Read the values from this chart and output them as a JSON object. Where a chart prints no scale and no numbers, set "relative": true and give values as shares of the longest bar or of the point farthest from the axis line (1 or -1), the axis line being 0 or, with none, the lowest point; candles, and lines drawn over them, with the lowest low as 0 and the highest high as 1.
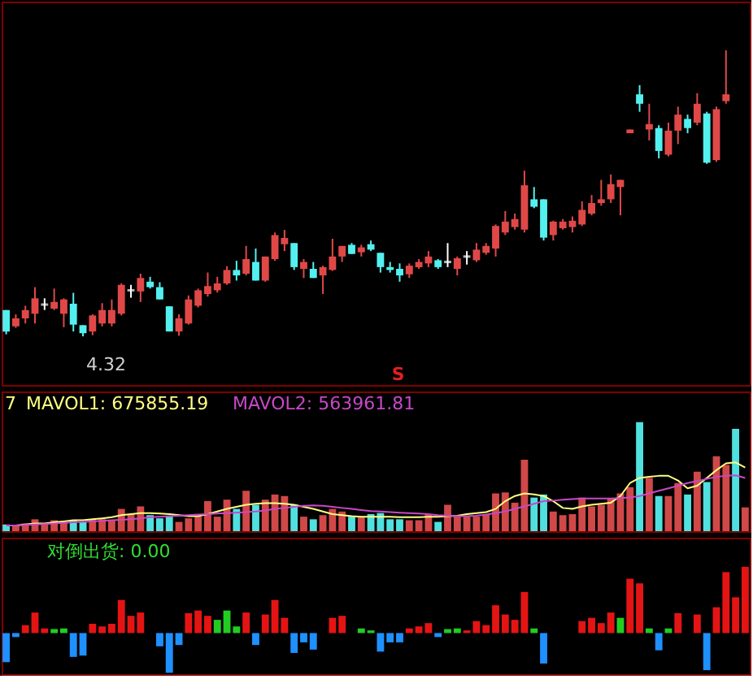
{
  "chart_data": [
    {
      "type": "candlestick",
      "relative": true,
      "categories": [
        null,
        null,
        null,
        null,
        null,
        null,
        null,
        null,
        null,
        null,
        null,
        null,
        null,
        null,
        null,
        null,
        null,
        null,
        null,
        null,
        null,
        null,
        null,
        null,
        null,
        null,
        null,
        null,
        null,
        null,
        null,
        null,
        null,
        null,
        null,
        null,
        null,
        null,
        null,
        null,
        null,
        null,
        null,
        null,
        null,
        null,
        null,
        null,
        null,
        null,
        null,
        null,
        null,
        null,
        null,
        null,
        null,
        null,
        null,
        null,
        null,
        null,
        null,
        null,
        null,
        null,
        null,
        null,
        null,
        null,
        null,
        null,
        null,
        null,
        null,
        null,
        null,
        null
      ],
      "ohlc": [
        [
          0.092,
          0.092,
          0.007,
          0.017
        ],
        [
          0.035,
          0.077,
          0.03,
          0.063
        ],
        [
          0.063,
          0.107,
          0.045,
          0.092
        ],
        [
          0.079,
          0.172,
          0.045,
          0.133
        ],
        [
          0.111,
          0.133,
          0.092,
          0.111
        ],
        [
          0.097,
          0.167,
          0.092,
          0.12
        ],
        [
          0.079,
          0.133,
          0.032,
          0.129
        ],
        [
          0.114,
          0.152,
          0.017,
          0.041
        ],
        [
          0.039,
          0.039,
          0,
          0.011
        ],
        [
          0.017,
          0.077,
          0.004,
          0.073
        ],
        [
          0.045,
          0.116,
          0.035,
          0.092
        ],
        [
          0.045,
          0.129,
          0.035,
          0.092
        ],
        [
          0.079,
          0.185,
          0.073,
          0.18
        ],
        [
          0.161,
          0.18,
          0.135,
          0.161
        ],
        [
          0.157,
          0.219,
          0.12,
          0.204
        ],
        [
          0.191,
          0.208,
          0.167,
          0.172
        ],
        [
          0.172,
          0.189,
          0.129,
          0.129
        ],
        [
          0.105,
          0.105,
          0.017,
          0.017
        ],
        [
          0.017,
          0.077,
          0.002,
          0.063
        ],
        [
          0.045,
          0.143,
          0.041,
          0.129
        ],
        [
          0.107,
          0.167,
          0.101,
          0.161
        ],
        [
          0.148,
          0.223,
          0.139,
          0.176
        ],
        [
          0.161,
          0.208,
          0.153,
          0.185
        ],
        [
          0.185,
          0.245,
          0.18,
          0.232
        ],
        [
          0.232,
          0.264,
          0.195,
          0.213
        ],
        [
          0.219,
          0.316,
          0.213,
          0.27
        ],
        [
          0.26,
          0.307,
          0.195,
          0.195
        ],
        [
          0.195,
          0.279,
          0.191,
          0.279
        ],
        [
          0.27,
          0.363,
          0.264,
          0.354
        ],
        [
          0.322,
          0.372,
          0.298,
          0.344
        ],
        [
          0.326,
          0.326,
          0.232,
          0.242
        ],
        [
          0.236,
          0.27,
          0.204,
          0.26
        ],
        [
          0.236,
          0.26,
          0.204,
          0.204
        ],
        [
          0.213,
          0.247,
          0.148,
          0.242
        ],
        [
          0.232,
          0.341,
          0.229,
          0.279
        ],
        [
          0.279,
          0.316,
          0.26,
          0.316
        ],
        [
          0.32,
          0.326,
          0.288,
          0.288
        ],
        [
          0.294,
          0.32,
          0.279,
          0.311
        ],
        [
          0.322,
          0.335,
          0.298,
          0.303
        ],
        [
          0.292,
          0.292,
          0.223,
          0.242
        ],
        [
          0.242,
          0.26,
          0.223,
          0.232
        ],
        [
          0.236,
          0.255,
          0.191,
          0.213
        ],
        [
          0.217,
          0.255,
          0.204,
          0.247
        ],
        [
          0.242,
          0.27,
          0.236,
          0.26
        ],
        [
          0.255,
          0.298,
          0.242,
          0.279
        ],
        [
          0.266,
          0.27,
          0.236,
          0.242
        ],
        [
          0.26,
          0.326,
          0.242,
          0.26
        ],
        [
          0.236,
          0.279,
          0.213,
          0.273
        ],
        [
          0.279,
          0.298,
          0.251,
          0.279
        ],
        [
          0.266,
          0.326,
          0.26,
          0.303
        ],
        [
          0.292,
          0.326,
          0.285,
          0.316
        ],
        [
          0.307,
          0.391,
          0.279,
          0.386
        ],
        [
          0.363,
          0.438,
          0.354,
          0.401
        ],
        [
          0.382,
          0.429,
          0.373,
          0.41
        ],
        [
          0.373,
          0.579,
          0.363,
          0.528
        ],
        [
          0.479,
          0.522,
          0.448,
          0.453
        ],
        [
          0.479,
          0.479,
          0.335,
          0.345
        ],
        [
          0.354,
          0.404,
          0.335,
          0.401
        ],
        [
          0.378,
          0.41,
          0.373,
          0.401
        ],
        [
          0.382,
          0.419,
          0.363,
          0.404
        ],
        [
          0.391,
          0.472,
          0.386,
          0.442
        ],
        [
          0.429,
          0.494,
          0.423,
          0.466
        ],
        [
          0.466,
          0.547,
          0.457,
          0.479
        ],
        [
          0.479,
          0.566,
          0.466,
          0.532
        ],
        [
          0.522,
          0.547,
          0.423,
          0.547
        ],
        [
          0.71,
          0.723,
          0.71,
          0.723
        ],
        [
          0.846,
          0.878,
          0.785,
          0.813
        ],
        [
          0.723,
          0.813,
          0.685,
          0.742
        ],
        [
          0.728,
          0.738,
          0.622,
          0.648
        ],
        [
          0.635,
          0.747,
          0.629,
          0.719
        ],
        [
          0.719,
          0.803,
          0.672,
          0.775
        ],
        [
          0.76,
          0.775,
          0.71,
          0.728
        ],
        [
          0.747,
          0.85,
          0.738,
          0.813
        ],
        [
          0.779,
          0.785,
          0.603,
          0.607
        ],
        [
          0.616,
          0.803,
          0.61,
          0.794
        ],
        [
          0.822,
          1,
          0.813,
          0.846
        ],
        null,
        null
      ],
      "colors": [
        "#54f0f0",
        "#e04848",
        "#e04848",
        "#e04848",
        "#ffffff",
        "#e04848",
        "#e04848",
        "#54f0f0",
        "#54f0f0",
        "#e04848",
        "#e04848",
        "#e04848",
        "#e04848",
        "#ffffff",
        "#e04848",
        "#54f0f0",
        "#54f0f0",
        "#54f0f0",
        "#e04848",
        "#e04848",
        "#e04848",
        "#e04848",
        "#e04848",
        "#e04848",
        "#54f0f0",
        "#e04848",
        "#54f0f0",
        "#e04848",
        "#e04848",
        "#e04848",
        "#54f0f0",
        "#e04848",
        "#54f0f0",
        "#e04848",
        "#e04848",
        "#e04848",
        "#54f0f0",
        "#e04848",
        "#54f0f0",
        "#54f0f0",
        "#54f0f0",
        "#54f0f0",
        "#e04848",
        "#e04848",
        "#e04848",
        "#54f0f0",
        "#ffffff",
        "#e04848",
        "#ffffff",
        "#e04848",
        "#e04848",
        "#e04848",
        "#e04848",
        "#e04848",
        "#e04848",
        "#54f0f0",
        "#54f0f0",
        "#e04848",
        "#e04848",
        "#e04848",
        "#e04848",
        "#e04848",
        "#e04848",
        "#e04848",
        "#e04848",
        "#e04848",
        "#54f0f0",
        "#e04848",
        "#54f0f0",
        "#e04848",
        "#e04848",
        "#54f0f0",
        "#e04848",
        "#54f0f0",
        "#e04848",
        "#e04848",
        null,
        null
      ],
      "annotations": [
        "4.32",
        "S"
      ]
    },
    {
      "type": "bar",
      "relative": true,
      "categories": [
        null,
        null,
        null,
        null,
        null,
        null,
        null,
        null,
        null,
        null,
        null,
        null,
        null,
        null,
        null,
        null,
        null,
        null,
        null,
        null,
        null,
        null,
        null,
        null,
        null,
        null,
        null,
        null,
        null,
        null,
        null,
        null,
        null,
        null,
        null,
        null,
        null,
        null,
        null,
        null,
        null,
        null,
        null,
        null,
        null,
        null,
        null,
        null,
        null,
        null,
        null,
        null,
        null,
        null,
        null,
        null,
        null,
        null,
        null,
        null,
        null,
        null,
        null,
        null,
        null,
        null,
        null,
        null,
        null,
        null,
        null,
        null,
        null,
        null,
        null,
        null,
        null,
        null
      ],
      "annotations": [
        "7"
      ],
      "series": [
        {
          "type": "bar",
          "values": [
            0.062,
            0.052,
            0.071,
            0.109,
            0.071,
            0.1,
            0.085,
            0.1,
            0.085,
            0.109,
            0.109,
            0.1,
            0.204,
            0.156,
            0.227,
            0.147,
            0.118,
            0.133,
            0.085,
            0.118,
            0.133,
            0.275,
            0.133,
            0.289,
            0.204,
            0.37,
            0.242,
            0.289,
            0.336,
            0.322,
            0.242,
            0.133,
            0.109,
            0.147,
            0.204,
            0.18,
            0.133,
            0.133,
            0.156,
            0.166,
            0.109,
            0.109,
            0.1,
            0.1,
            0.156,
            0.085,
            0.242,
            0.133,
            0.133,
            0.133,
            0.156,
            0.346,
            0.355,
            0.261,
            0.654,
            0.308,
            0.336,
            0.18,
            0.147,
            0.156,
            0.308,
            0.227,
            0.242,
            0.299,
            0.346,
            0.403,
            1,
            0.488,
            0.322,
            0.322,
            0.441,
            0.336,
            0.545,
            0.45,
            0.687,
            0.607,
            0.938,
            0.218
          ],
          "colors": [
            "#50e0e0",
            "#d04848",
            "#d04848",
            "#d04848",
            "#d04848",
            "#d04848",
            "#d04848",
            "#50e0e0",
            "#50e0e0",
            "#d04848",
            "#d04848",
            "#d04848",
            "#d04848",
            "#d04848",
            "#d04848",
            "#50e0e0",
            "#50e0e0",
            "#50e0e0",
            "#d04848",
            "#d04848",
            "#d04848",
            "#d04848",
            "#d04848",
            "#d04848",
            "#50e0e0",
            "#d04848",
            "#50e0e0",
            "#d04848",
            "#d04848",
            "#d04848",
            "#50e0e0",
            "#d04848",
            "#50e0e0",
            "#d04848",
            "#d04848",
            "#d04848",
            "#50e0e0",
            "#d04848",
            "#50e0e0",
            "#50e0e0",
            "#50e0e0",
            "#50e0e0",
            "#d04848",
            "#d04848",
            "#d04848",
            "#50e0e0",
            "#d04848",
            "#d04848",
            "#d04848",
            "#d04848",
            "#d04848",
            "#d04848",
            "#d04848",
            "#d04848",
            "#d04848",
            "#50e0e0",
            "#50e0e0",
            "#d04848",
            "#d04848",
            "#d04848",
            "#d04848",
            "#d04848",
            "#d04848",
            "#d04848",
            "#d04848",
            "#d04848",
            "#50e0e0",
            "#d04848",
            "#50e0e0",
            "#d04848",
            "#d04848",
            "#50e0e0",
            "#d04848",
            "#50e0e0",
            "#d04848",
            "#d04848",
            "#50e0e0",
            "#d04848"
          ]
        },
        {
          "type": "line",
          "name": "MAVOL1: 675855.19",
          "color": "#ffff80",
          "values": [
            0.052,
            0.052,
            0.062,
            0.071,
            0.071,
            0.081,
            0.09,
            0.1,
            0.1,
            0.109,
            0.118,
            0.128,
            0.147,
            0.156,
            0.166,
            0.166,
            0.161,
            0.156,
            0.147,
            0.137,
            0.137,
            0.156,
            0.18,
            0.204,
            0.223,
            0.242,
            0.251,
            0.256,
            0.256,
            0.251,
            0.242,
            0.223,
            0.204,
            0.18,
            0.156,
            0.147,
            0.137,
            0.133,
            0.133,
            0.133,
            0.133,
            0.128,
            0.128,
            0.128,
            0.133,
            0.133,
            0.137,
            0.142,
            0.156,
            0.166,
            0.175,
            0.204,
            0.275,
            0.322,
            0.346,
            0.336,
            0.322,
            0.275,
            0.213,
            0.204,
            0.227,
            0.242,
            0.251,
            0.261,
            0.322,
            0.441,
            0.488,
            0.498,
            0.507,
            0.507,
            0.464,
            0.393,
            0.417,
            0.488,
            0.559,
            0.621,
            0.63,
            0.583
          ]
        },
        {
          "type": "line",
          "name": "MAVOL2: 563961.81",
          "color": "#c848c8",
          "values": [
            0.052,
            0.052,
            0.057,
            0.062,
            0.066,
            0.071,
            0.076,
            0.081,
            0.085,
            0.09,
            0.095,
            0.1,
            0.104,
            0.109,
            0.118,
            0.128,
            0.133,
            0.137,
            0.142,
            0.147,
            0.152,
            0.156,
            0.161,
            0.166,
            0.17,
            0.175,
            0.18,
            0.19,
            0.204,
            0.213,
            0.223,
            0.232,
            0.237,
            0.232,
            0.223,
            0.213,
            0.204,
            0.194,
            0.185,
            0.18,
            0.175,
            0.17,
            0.166,
            0.161,
            0.156,
            0.147,
            0.142,
            0.137,
            0.137,
            0.142,
            0.152,
            0.166,
            0.18,
            0.204,
            0.227,
            0.251,
            0.275,
            0.28,
            0.289,
            0.294,
            0.299,
            0.299,
            0.299,
            0.299,
            0.303,
            0.308,
            0.322,
            0.346,
            0.37,
            0.393,
            0.417,
            0.441,
            0.46,
            0.479,
            0.498,
            0.507,
            0.512,
            0.488
          ]
        }
      ]
    },
    {
      "type": "bar",
      "relative": true,
      "title": "对倒出货: 0.00",
      "categories": [
        null,
        null,
        null,
        null,
        null,
        null,
        null,
        null,
        null,
        null,
        null,
        null,
        null,
        null,
        null,
        null,
        null,
        null,
        null,
        null,
        null,
        null,
        null,
        null,
        null,
        null,
        null,
        null,
        null,
        null,
        null,
        null,
        null,
        null,
        null,
        null,
        null,
        null,
        null,
        null,
        null,
        null,
        null,
        null,
        null,
        null,
        null,
        null,
        null,
        null,
        null,
        null,
        null,
        null,
        null,
        null,
        null,
        null,
        null,
        null,
        null,
        null,
        null,
        null,
        null,
        null,
        null,
        null,
        null,
        null,
        null,
        null,
        null,
        null,
        null,
        null,
        null,
        null
      ],
      "values": [
        -0.44,
        -0.06,
        0.12,
        0.31,
        0.07,
        0.06,
        0.07,
        -0.36,
        -0.34,
        0.14,
        0.1,
        0.14,
        0.5,
        0.26,
        0.31,
        0,
        -0.2,
        -0.6,
        -0.18,
        0.3,
        0.34,
        0.26,
        0.2,
        0.34,
        0.1,
        0.31,
        -0.18,
        0.28,
        0.5,
        0.23,
        -0.3,
        -0.14,
        -0.25,
        0,
        0.23,
        0.26,
        0,
        0.07,
        0.04,
        -0.28,
        -0.14,
        -0.14,
        0.07,
        0.1,
        0.15,
        -0.06,
        0.06,
        0.07,
        0.04,
        0.18,
        0.12,
        0.42,
        0.28,
        0.2,
        0.62,
        0.07,
        -0.46,
        0,
        0,
        0,
        0.18,
        0.23,
        0.15,
        0.31,
        0.23,
        0.82,
        0.75,
        0.07,
        -0.26,
        0.07,
        0.3,
        0,
        0.28,
        -0.56,
        0.39,
        0.92,
        0.54,
        1
      ],
      "colors": [
        "#1e90ff",
        "#1e90ff",
        "#e51414",
        "#e51414",
        "#e51414",
        "#22cc22",
        "#22cc22",
        "#1e90ff",
        "#1e90ff",
        "#e51414",
        "#e51414",
        "#e51414",
        "#e51414",
        "#e51414",
        "#e51414",
        "#e51414",
        "#1e90ff",
        "#1e90ff",
        "#1e90ff",
        "#e51414",
        "#e51414",
        "#e51414",
        "#22cc22",
        "#22cc22",
        "#22cc22",
        "#e51414",
        "#1e90ff",
        "#e51414",
        "#e51414",
        "#e51414",
        "#1e90ff",
        "#1e90ff",
        "#1e90ff",
        "#e51414",
        "#e51414",
        "#e51414",
        "#e51414",
        "#22cc22",
        "#22cc22",
        "#1e90ff",
        "#1e90ff",
        "#1e90ff",
        "#e51414",
        "#e51414",
        "#e51414",
        "#1e90ff",
        "#22cc22",
        "#22cc22",
        "#e51414",
        "#e51414",
        "#e51414",
        "#e51414",
        "#e51414",
        "#e51414",
        "#e51414",
        "#22cc22",
        "#1e90ff",
        "#e51414",
        "#e51414",
        "#e51414",
        "#e51414",
        "#e51414",
        "#e51414",
        "#e51414",
        "#22cc22",
        "#e51414",
        "#e51414",
        "#22cc22",
        "#1e90ff",
        "#22cc22",
        "#e51414",
        "#e51414",
        "#e51414",
        "#1e90ff",
        "#e51414",
        "#e51414",
        "#e51414",
        "#e51414"
      ]
    }
  ]
}
